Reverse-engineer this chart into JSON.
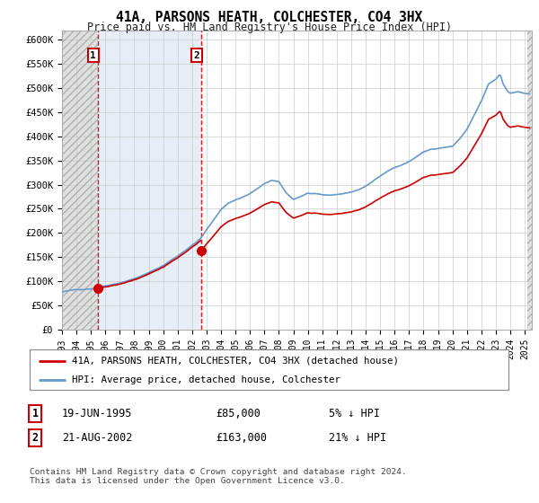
{
  "title": "41A, PARSONS HEATH, COLCHESTER, CO4 3HX",
  "subtitle": "Price paid vs. HM Land Registry's House Price Index (HPI)",
  "ylim": [
    0,
    620000
  ],
  "yticks": [
    0,
    50000,
    100000,
    150000,
    200000,
    250000,
    300000,
    350000,
    400000,
    450000,
    500000,
    550000,
    600000
  ],
  "ytick_labels": [
    "£0",
    "£50K",
    "£100K",
    "£150K",
    "£200K",
    "£250K",
    "£300K",
    "£350K",
    "£400K",
    "£450K",
    "£500K",
    "£550K",
    "£600K"
  ],
  "background_color": "#ffffff",
  "transaction1_year": 1995.46,
  "transaction1_price": 85000,
  "transaction2_year": 2002.63,
  "transaction2_price": 163000,
  "legend_line1": "41A, PARSONS HEATH, COLCHESTER, CO4 3HX (detached house)",
  "legend_line2": "HPI: Average price, detached house, Colchester",
  "footer1": "Contains HM Land Registry data © Crown copyright and database right 2024.",
  "footer2": "This data is licensed under the Open Government Licence v3.0.",
  "note1_num": "1",
  "note1_date": "19-JUN-1995",
  "note1_price": "£85,000",
  "note1_hpi": "5% ↓ HPI",
  "note2_num": "2",
  "note2_date": "21-AUG-2002",
  "note2_price": "£163,000",
  "note2_hpi": "21% ↓ HPI",
  "line_color_property": "#cc0000",
  "line_color_hpi": "#6699cc",
  "marker_color": "#cc0000",
  "xmin": 1993.0,
  "xmax": 2025.5
}
